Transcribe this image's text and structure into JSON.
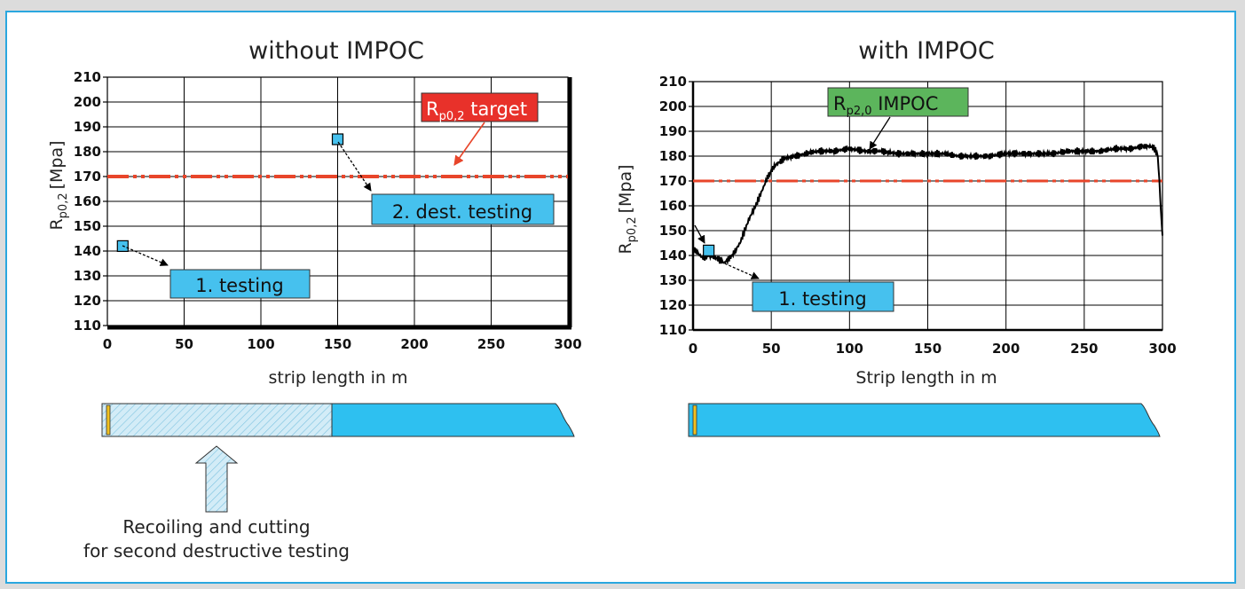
{
  "colors": {
    "frame_border": "#2aa7df",
    "target_line": "#e8452a",
    "callout_blue": "#46c1ee",
    "target_box": "#e8312a",
    "impoc_box": "#5cb55c",
    "strip_blue": "#2ec0f0",
    "hatched": "#cce7f4",
    "test_mark": "#f0c020"
  },
  "chart_data": [
    {
      "type": "scatter",
      "title": "without IMPOC",
      "xlabel": "strip length in m",
      "ylabel_main": "R",
      "ylabel_sub": "p0,2",
      "ylabel_unit": "[Mpa]",
      "xlim": [
        0,
        300
      ],
      "ylim": [
        110,
        210
      ],
      "xticks": [
        "0",
        "50",
        "100",
        "150",
        "200",
        "250",
        "300"
      ],
      "yticks": [
        "110",
        "120",
        "130",
        "140",
        "150",
        "160",
        "170",
        "180",
        "190",
        "200",
        "210"
      ],
      "target_value": 170,
      "points": [
        {
          "x": 10,
          "y": 142
        },
        {
          "x": 150,
          "y": 185
        }
      ],
      "annotations": {
        "target_main": "R",
        "target_sub": "p0,2",
        "target_rest": " target",
        "second_testing": "2. dest. testing",
        "first_testing": "1. testing"
      },
      "strip_caption_line1": "Recoiling and cutting",
      "strip_caption_line2": "for second destructive testing"
    },
    {
      "type": "line",
      "title": "with IMPOC",
      "xlabel": "Strip length in m",
      "ylabel_main": "R",
      "ylabel_sub": "p0,2",
      "ylabel_unit": "[Mpa]",
      "xlim": [
        0,
        300
      ],
      "ylim": [
        110,
        210
      ],
      "xticks": [
        "0",
        "50",
        "100",
        "150",
        "200",
        "250",
        "300"
      ],
      "yticks": [
        "110",
        "120",
        "130",
        "140",
        "150",
        "160",
        "170",
        "180",
        "190",
        "200",
        "210"
      ],
      "target_value": 170,
      "points": [
        {
          "x": 10,
          "y": 142
        }
      ],
      "series": [
        {
          "x": [
            0,
            3,
            6,
            10,
            15,
            20,
            25,
            30,
            33,
            36,
            40,
            44,
            48,
            52,
            58,
            65,
            72,
            80,
            90,
            100,
            110,
            120,
            130,
            140,
            150,
            160,
            170,
            180,
            190,
            200,
            210,
            220,
            230,
            240,
            250,
            260,
            270,
            280,
            288,
            292,
            295,
            297,
            298,
            299,
            300
          ],
          "values": [
            143,
            141,
            139,
            140,
            139,
            137,
            140,
            145,
            150,
            155,
            160,
            166,
            172,
            176,
            179,
            180,
            181,
            182,
            182,
            183,
            182,
            182,
            181,
            181,
            181,
            181,
            180,
            180,
            180,
            181,
            181,
            181,
            181,
            182,
            182,
            182,
            183,
            183,
            184,
            184,
            183,
            180,
            170,
            158,
            148
          ]
        }
      ],
      "annotations": {
        "impoc_main": "R",
        "impoc_sub": "p2,0",
        "impoc_rest": " IMPOC",
        "first_testing": "1. testing"
      }
    }
  ]
}
